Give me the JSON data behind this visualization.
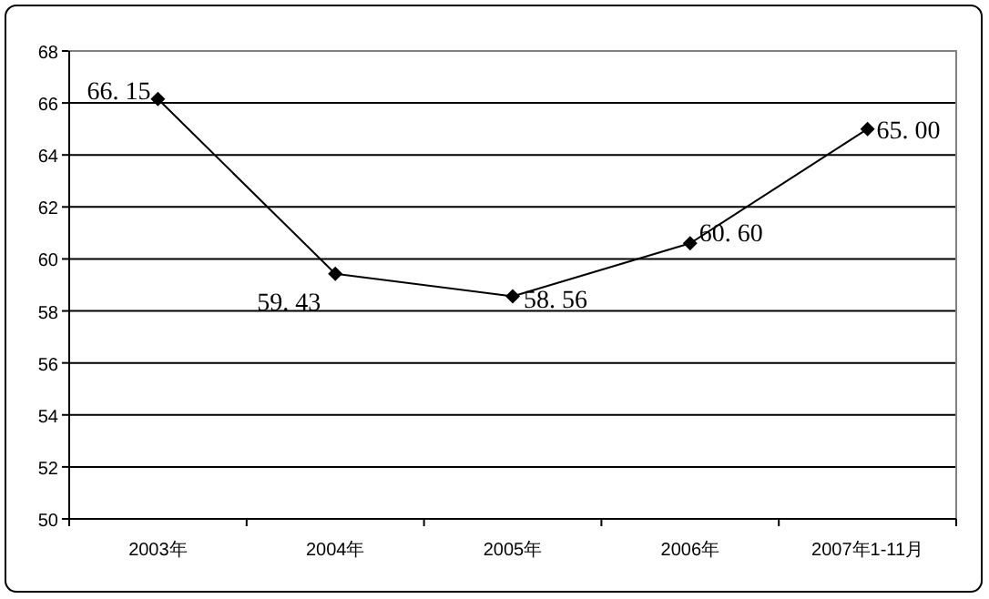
{
  "chart_data": {
    "type": "line",
    "categories": [
      "2003年",
      "2004年",
      "2005年",
      "2006年",
      "2007年1-11月"
    ],
    "series": [
      {
        "color": "#000000",
        "values": [
          66.15,
          59.43,
          58.56,
          60.6,
          65.0
        ]
      }
    ],
    "value_labels": [
      "66. 15",
      "59. 43",
      "58. 56",
      "60. 60",
      "65. 00"
    ],
    "ylim": [
      50,
      68
    ],
    "yticks": [
      50,
      52,
      54,
      56,
      58,
      60,
      62,
      64,
      66,
      68
    ],
    "grid": "y",
    "marker": "diamond",
    "line_style": "solid"
  }
}
